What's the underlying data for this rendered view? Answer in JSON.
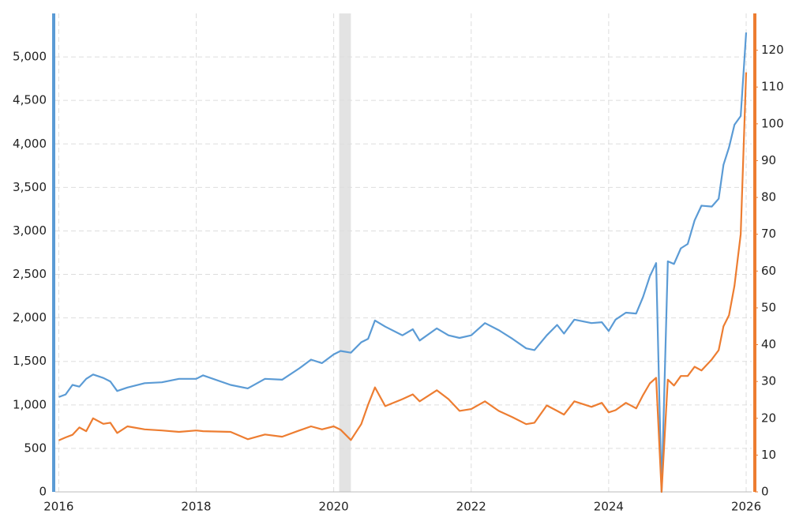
{
  "chart_data": {
    "type": "line",
    "x": [
      2016.0,
      2016.1,
      2016.2,
      2016.3,
      2016.4,
      2016.5,
      2016.65,
      2016.75,
      2016.85,
      2017.0,
      2017.25,
      2017.5,
      2017.75,
      2018.0,
      2018.1,
      2018.5,
      2018.75,
      2019.0,
      2019.25,
      2019.5,
      2019.67,
      2019.83,
      2020.0,
      2020.1,
      2020.25,
      2020.4,
      2020.5,
      2020.6,
      2020.75,
      2021.0,
      2021.15,
      2021.25,
      2021.5,
      2021.67,
      2021.83,
      2022.0,
      2022.2,
      2022.4,
      2022.6,
      2022.8,
      2022.92,
      2023.1,
      2023.25,
      2023.35,
      2023.5,
      2023.75,
      2023.9,
      2024.0,
      2024.1,
      2024.25,
      2024.4,
      2024.5,
      2024.6,
      2024.69,
      2024.77,
      2024.86,
      2024.95,
      2025.05,
      2025.15,
      2025.25,
      2025.35,
      2025.5,
      2025.6,
      2025.67,
      2025.75,
      2025.83,
      2025.92,
      2026.0
    ],
    "series": [
      {
        "color": "#5b9bd5",
        "axis": "y",
        "values": [
          1090,
          1120,
          1230,
          1210,
          1300,
          1350,
          1310,
          1270,
          1160,
          1200,
          1250,
          1260,
          1300,
          1300,
          1340,
          1230,
          1190,
          1300,
          1290,
          1420,
          1520,
          1480,
          1580,
          1620,
          1600,
          1720,
          1760,
          1970,
          1900,
          1800,
          1870,
          1740,
          1880,
          1800,
          1770,
          1800,
          1940,
          1860,
          1760,
          1650,
          1630,
          1800,
          1920,
          1820,
          1980,
          1940,
          1950,
          1850,
          1980,
          2060,
          2050,
          2240,
          2480,
          2630,
          0,
          2650,
          2620,
          2800,
          2850,
          3120,
          3290,
          3280,
          3370,
          3760,
          3960,
          4220,
          4320,
          5280
        ]
      },
      {
        "color": "#ed7d31",
        "axis": "y2",
        "values": [
          14.0,
          14.8,
          15.5,
          17.5,
          16.5,
          20.0,
          18.5,
          18.8,
          16.0,
          17.8,
          17.0,
          16.7,
          16.3,
          16.7,
          16.5,
          16.3,
          14.3,
          15.6,
          15.0,
          16.7,
          17.8,
          17.0,
          17.8,
          16.9,
          14.1,
          18.4,
          23.7,
          28.4,
          23.3,
          25.2,
          26.5,
          24.6,
          27.6,
          25.2,
          22.0,
          22.5,
          24.6,
          22.0,
          20.3,
          18.4,
          18.8,
          23.5,
          22.0,
          21.0,
          24.6,
          23.1,
          24.2,
          21.6,
          22.2,
          24.2,
          22.7,
          26.3,
          29.5,
          31.0,
          0,
          30.5,
          28.9,
          31.5,
          31.5,
          34.0,
          33.0,
          36.0,
          38.5,
          45.0,
          48.0,
          56.0,
          70.0,
          114.0
        ]
      }
    ],
    "shaded_ranges": [
      [
        2020.08,
        2020.25
      ]
    ],
    "xlim": [
      2015.95,
      2026.08
    ],
    "xticks": [
      2016,
      2018,
      2020,
      2022,
      2024,
      2026
    ],
    "ylim": [
      0,
      5500
    ],
    "yticks": [
      0,
      500,
      {
        "value": 1000,
        "label": "1,000"
      },
      {
        "value": 1500,
        "label": "1,500"
      },
      {
        "value": 2000,
        "label": "2,000"
      },
      {
        "value": 2500,
        "label": "2,500"
      },
      {
        "value": 3000,
        "label": "3,000"
      },
      {
        "value": 3500,
        "label": "3,500"
      },
      {
        "value": 4000,
        "label": "4,000"
      },
      {
        "value": 4500,
        "label": "4,500"
      },
      {
        "value": 5000,
        "label": "5,000"
      }
    ],
    "y2lim": [
      0,
      130
    ],
    "y2ticks": [
      0,
      10,
      20,
      30,
      40,
      50,
      60,
      70,
      80,
      90,
      100,
      110,
      120
    ],
    "grid": true
  }
}
